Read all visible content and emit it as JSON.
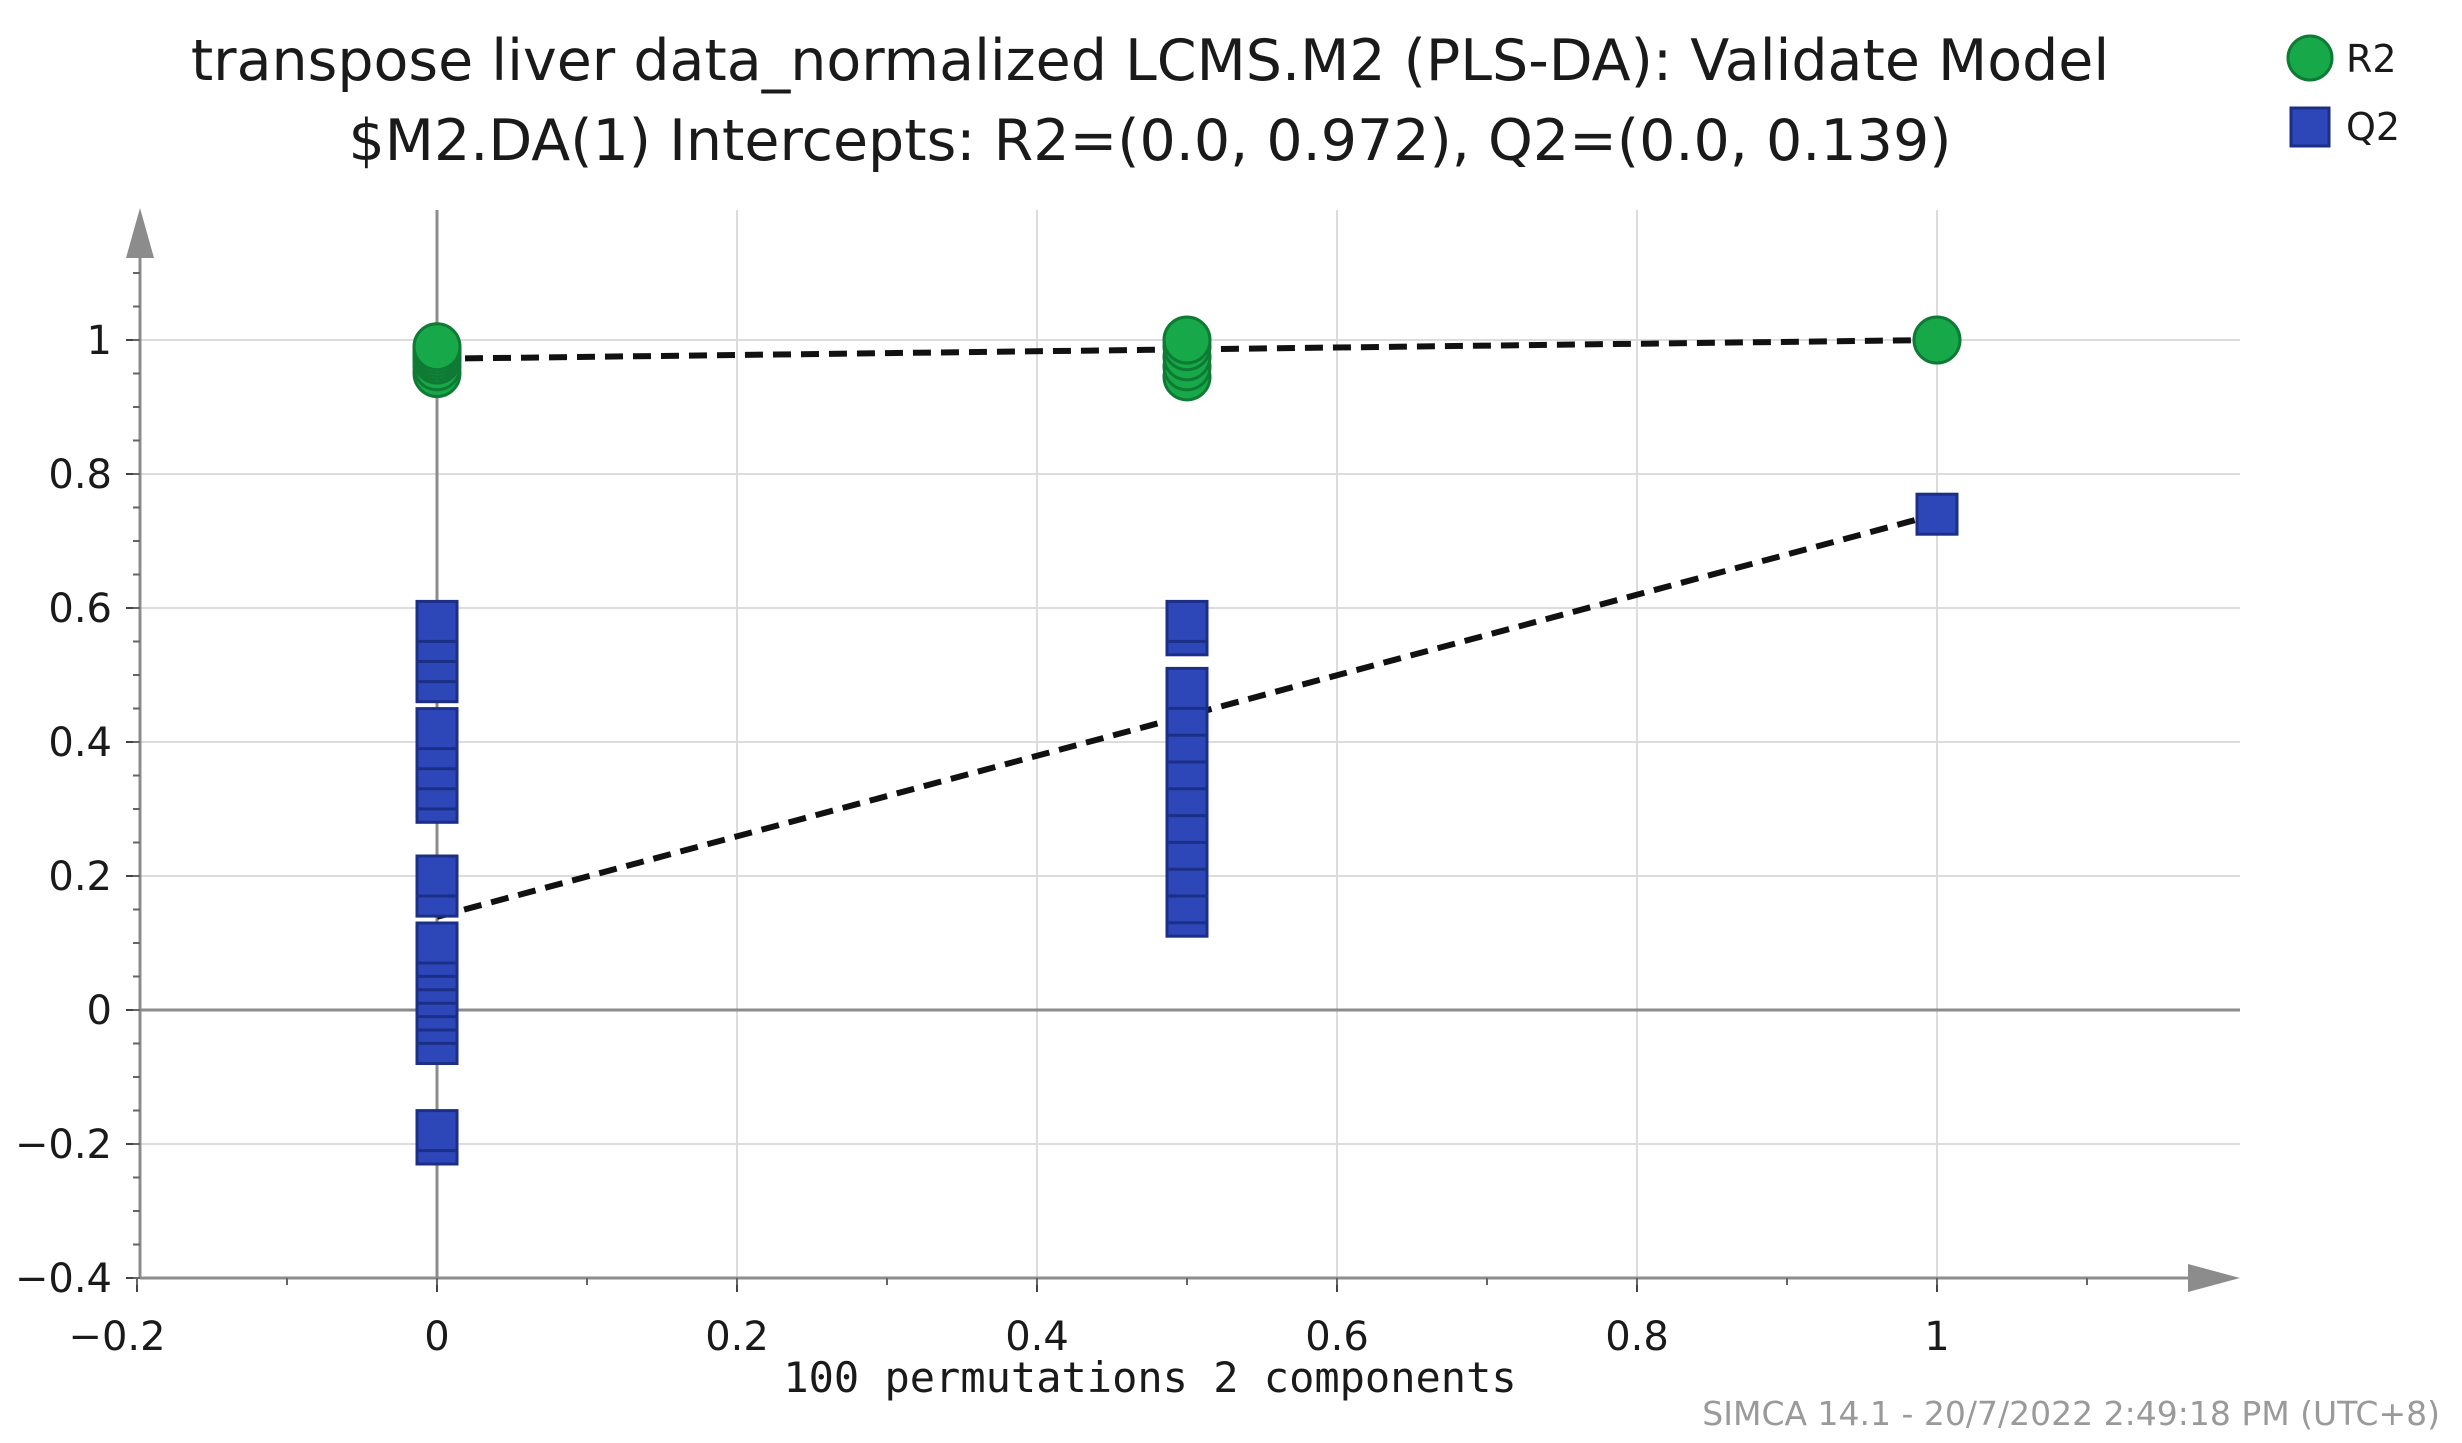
{
  "chart_data": {
    "type": "scatter",
    "title": "transpose liver data_normalized LCMS.M2 (PLS-DA): Validate Model",
    "subtitle": "$M2.DA(1) Intercepts: R2=(0.0, 0.972), Q2=(0.0, 0.139)",
    "xlabel": "100 permutations 2 components",
    "ylabel": "",
    "xlim": [
      -0.2,
      1.2
    ],
    "ylim": [
      -0.4,
      1.2
    ],
    "grid": true,
    "legend_position": "top-right",
    "x_ticks": [
      {
        "value": -0.2,
        "label": "−0.2"
      },
      {
        "value": 0,
        "label": "0"
      },
      {
        "value": 0.2,
        "label": "0.2"
      },
      {
        "value": 0.4,
        "label": "0.4"
      },
      {
        "value": 0.6,
        "label": "0.6"
      },
      {
        "value": 0.8,
        "label": "0.8"
      },
      {
        "value": 1,
        "label": "1"
      }
    ],
    "y_ticks": [
      {
        "value": -0.4,
        "label": "−0.4"
      },
      {
        "value": -0.2,
        "label": "−0.2"
      },
      {
        "value": 0,
        "label": "0"
      },
      {
        "value": 0.2,
        "label": "0.2"
      },
      {
        "value": 0.4,
        "label": "0.4"
      },
      {
        "value": 0.6,
        "label": "0.6"
      },
      {
        "value": 0.8,
        "label": "0.8"
      },
      {
        "value": 1,
        "label": "1"
      }
    ],
    "series": [
      {
        "name": "R2",
        "marker": "circle",
        "color": "#17a84a",
        "edge": "#0e7a33",
        "points": [
          {
            "x": 0,
            "y": 0.95
          },
          {
            "x": 0,
            "y": 0.96
          },
          {
            "x": 0,
            "y": 0.97
          },
          {
            "x": 0,
            "y": 0.975
          },
          {
            "x": 0,
            "y": 0.98
          },
          {
            "x": 0,
            "y": 0.985
          },
          {
            "x": 0,
            "y": 0.99
          },
          {
            "x": 0.5,
            "y": 0.945
          },
          {
            "x": 0.5,
            "y": 0.96
          },
          {
            "x": 0.5,
            "y": 0.975
          },
          {
            "x": 0.5,
            "y": 0.99
          },
          {
            "x": 0.5,
            "y": 1.0
          },
          {
            "x": 1,
            "y": 1.0
          }
        ],
        "regression": {
          "x": [
            0,
            1
          ],
          "y": [
            0.972,
            1.0
          ]
        }
      },
      {
        "name": "Q2",
        "marker": "square",
        "color": "#2e47b8",
        "edge": "#1c2f86",
        "points": [
          {
            "x": 0,
            "y": -0.2
          },
          {
            "x": 0,
            "y": -0.18
          },
          {
            "x": 0,
            "y": -0.05
          },
          {
            "x": 0,
            "y": -0.02
          },
          {
            "x": 0,
            "y": 0.0
          },
          {
            "x": 0,
            "y": 0.02
          },
          {
            "x": 0,
            "y": 0.04
          },
          {
            "x": 0,
            "y": 0.06
          },
          {
            "x": 0,
            "y": 0.08
          },
          {
            "x": 0,
            "y": 0.1
          },
          {
            "x": 0,
            "y": 0.17
          },
          {
            "x": 0,
            "y": 0.2
          },
          {
            "x": 0,
            "y": 0.31
          },
          {
            "x": 0,
            "y": 0.33
          },
          {
            "x": 0,
            "y": 0.36
          },
          {
            "x": 0,
            "y": 0.39
          },
          {
            "x": 0,
            "y": 0.42
          },
          {
            "x": 0,
            "y": 0.49
          },
          {
            "x": 0,
            "y": 0.52
          },
          {
            "x": 0,
            "y": 0.55
          },
          {
            "x": 0,
            "y": 0.58
          },
          {
            "x": 0.5,
            "y": 0.14
          },
          {
            "x": 0.5,
            "y": 0.16
          },
          {
            "x": 0.5,
            "y": 0.2
          },
          {
            "x": 0.5,
            "y": 0.24
          },
          {
            "x": 0.5,
            "y": 0.28
          },
          {
            "x": 0.5,
            "y": 0.32
          },
          {
            "x": 0.5,
            "y": 0.36
          },
          {
            "x": 0.5,
            "y": 0.4
          },
          {
            "x": 0.5,
            "y": 0.44
          },
          {
            "x": 0.5,
            "y": 0.48
          },
          {
            "x": 0.5,
            "y": 0.56
          },
          {
            "x": 0.5,
            "y": 0.58
          },
          {
            "x": 1,
            "y": 0.74
          }
        ],
        "regression": {
          "x": [
            0,
            1
          ],
          "y": [
            0.139,
            0.74
          ]
        }
      }
    ],
    "footer": "SIMCA 14.1 - 20/7/2022 2:49:18 PM (UTC+8)"
  }
}
